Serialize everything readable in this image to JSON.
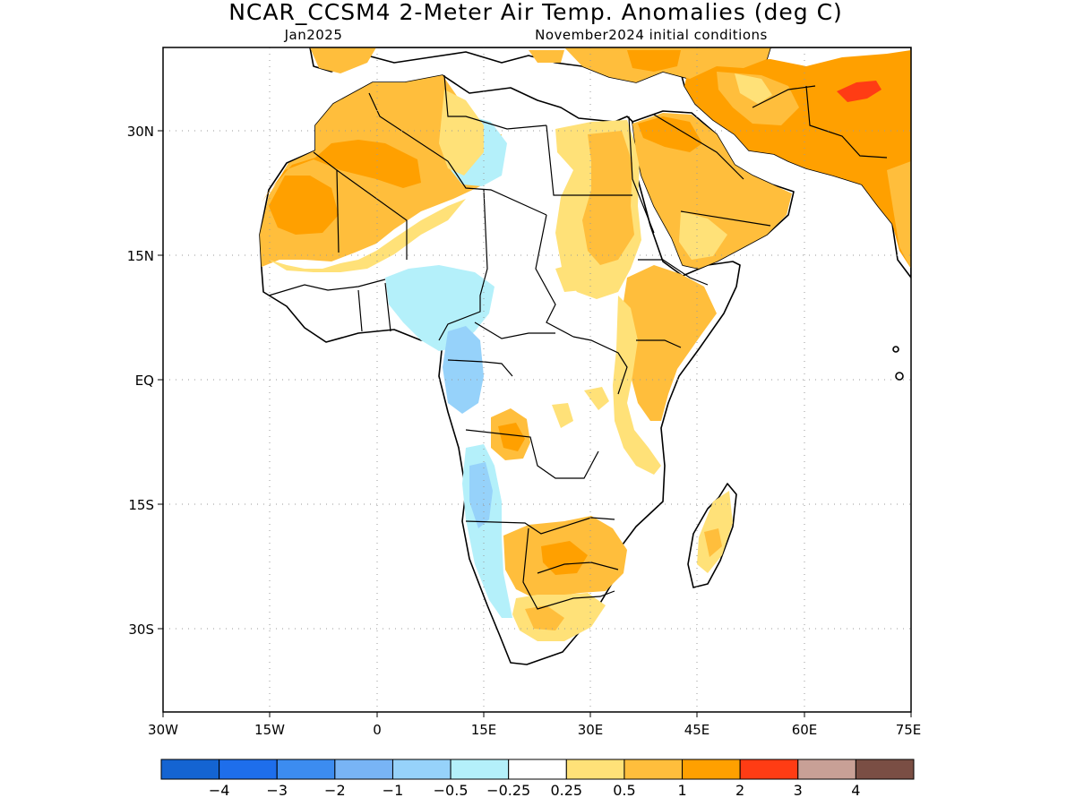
{
  "title": "NCAR_CCSM4 2-Meter Air Temp. Anomalies (deg C)",
  "valid_month": "Jan2025",
  "initial_conditions": "November2024 initial conditions",
  "map": {
    "lon_range": [
      -30,
      75
    ],
    "lat_range": [
      -40,
      40
    ],
    "lon_ticks": [
      "30W",
      "15W",
      "0",
      "15E",
      "30E",
      "45E",
      "60E",
      "75E"
    ],
    "lat_ticks": [
      "30N",
      "15N",
      "EQ",
      "15S",
      "30S"
    ],
    "grid": true
  },
  "colorbar": {
    "colors": [
      "#1464d2",
      "#1e6eeb",
      "#3c8cf0",
      "#78b4f5",
      "#96d2fa",
      "#b4f0fa",
      "#ffffff",
      "#ffe178",
      "#ffbe3c",
      "#ffa000",
      "#ff3c14",
      "#c8a096",
      "#7a4e44"
    ],
    "labels": [
      "−4",
      "−3",
      "−2",
      "−1",
      "−0.5",
      "−0.25",
      "0.25",
      "0.5",
      "1",
      "2",
      "3",
      "4"
    ]
  },
  "anomaly_regions": [
    {
      "area": "Morocco-Algeria-Mauritania",
      "category": "1",
      "color": "#ffbe3c"
    },
    {
      "area": "Western Sahara coast",
      "category": "1-2",
      "color": "#ffa000"
    },
    {
      "area": "Libya",
      "category": "0.5",
      "color": "#ffe178"
    },
    {
      "area": "Egypt-Sudan",
      "category": "0.5-1",
      "color": "#ffbe3c"
    },
    {
      "area": "Arabian Peninsula",
      "category": "1",
      "color": "#ffbe3c"
    },
    {
      "area": "Iran-Afghanistan",
      "category": "1-2",
      "color": "#ffa000"
    },
    {
      "area": "Afghanistan peak",
      "category": "2-3",
      "color": "#ff3c14"
    },
    {
      "area": "Ethiopia-Somalia-Kenya",
      "category": "0.5-1",
      "color": "#ffbe3c"
    },
    {
      "area": "Central Sahel",
      "category": "-0.25 to -0.5",
      "color": "#b4f0fa"
    },
    {
      "area": "Gabon-Congo coast",
      "category": "-0.5 to -1",
      "color": "#96d2fa"
    },
    {
      "area": "Angola-Namibia coast",
      "category": "-0.5",
      "color": "#b4f0fa"
    },
    {
      "area": "Angola interior",
      "category": "0.5-1",
      "color": "#ffbe3c"
    },
    {
      "area": "Zimbabwe-Botswana",
      "category": "0.5-1",
      "color": "#ffbe3c"
    },
    {
      "area": "South Africa",
      "category": "0.5",
      "color": "#ffe178"
    },
    {
      "area": "Madagascar",
      "category": "0.5",
      "color": "#ffe178"
    }
  ]
}
